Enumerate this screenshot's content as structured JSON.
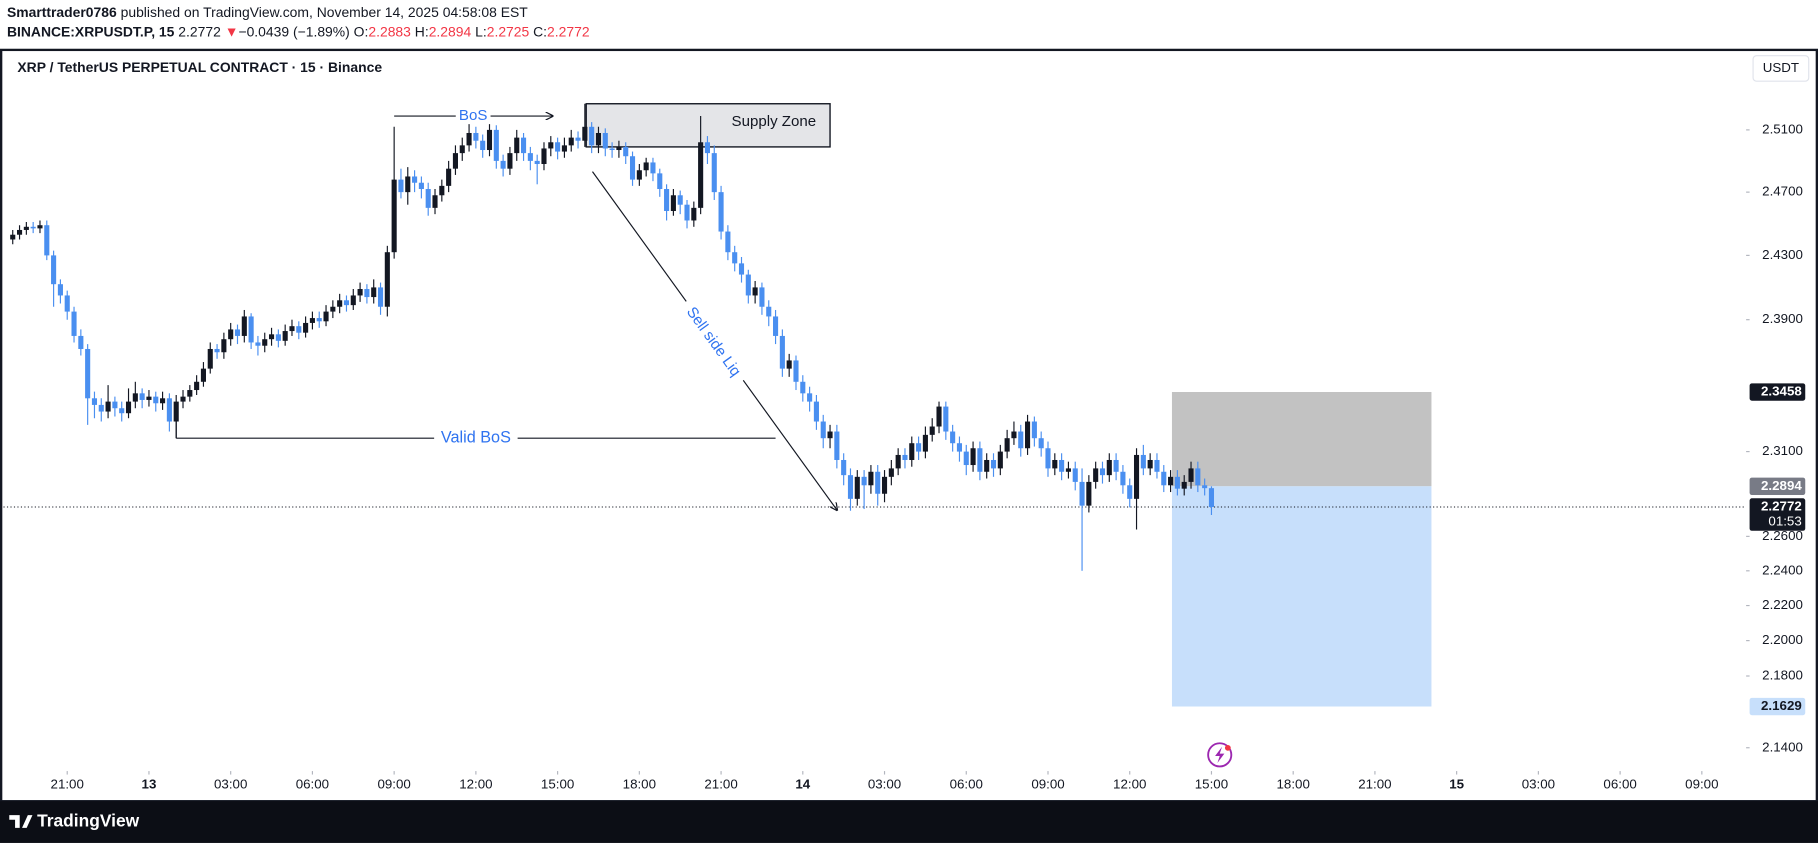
{
  "header": {
    "author": "Smarttrader0786",
    "published": "published on TradingView.com, November 14, 2025 04:58:08 EST",
    "symbol": "BINANCE:XRPUSDT.P, 15",
    "direction": "▼",
    "change": "−0.0439 (−1.89%)",
    "o_label": "O:",
    "h_label": "H:",
    "l_label": "L:",
    "c_label": "C:"
  },
  "footer": {
    "brand": "TradingView"
  },
  "chart_data": {
    "type": "candlestick",
    "title": "XRP / TetherUS PERPETUAL CONTRACT · 15 · Binance",
    "currency": "USDT",
    "up_color": "#131722",
    "down_color": "#4a8ff0",
    "log_scale": true,
    "grid": false,
    "ylim": [
      2.1113,
      2.5616
    ],
    "yticks": [
      {
        "value": 2.51,
        "label": "2.5100"
      },
      {
        "value": 2.47,
        "label": "2.4700"
      },
      {
        "value": 2.43,
        "label": "2.4300"
      },
      {
        "value": 2.39,
        "label": "2.3900"
      },
      {
        "value": 2.31,
        "label": "2.3100"
      },
      {
        "value": 2.26,
        "label": "2.2600"
      },
      {
        "value": 2.24,
        "label": "2.2400"
      },
      {
        "value": 2.22,
        "label": "2.2200"
      },
      {
        "value": 2.2,
        "label": "2.2000"
      },
      {
        "value": 2.18,
        "label": "2.1800"
      },
      {
        "value": 2.14,
        "label": "2.1400"
      }
    ],
    "xlim": [
      -1.87,
      254.5
    ],
    "xticks": [
      {
        "value": 8,
        "label": "21:00"
      },
      {
        "value": 20,
        "label": "13"
      },
      {
        "value": 32,
        "label": "03:00"
      },
      {
        "value": 44,
        "label": "06:00"
      },
      {
        "value": 56,
        "label": "09:00"
      },
      {
        "value": 68,
        "label": "12:00"
      },
      {
        "value": 80,
        "label": "15:00"
      },
      {
        "value": 92,
        "label": "18:00"
      },
      {
        "value": 104,
        "label": "21:00"
      },
      {
        "value": 116,
        "label": "14"
      },
      {
        "value": 128,
        "label": "03:00"
      },
      {
        "value": 140,
        "label": "06:00"
      },
      {
        "value": 152,
        "label": "09:00"
      },
      {
        "value": 164,
        "label": "12:00"
      },
      {
        "value": 176,
        "label": "15:00"
      },
      {
        "value": 188,
        "label": "18:00"
      },
      {
        "value": 200,
        "label": "21:00"
      },
      {
        "value": 212,
        "label": "15"
      },
      {
        "value": 224,
        "label": "03:00"
      },
      {
        "value": 236,
        "label": "06:00"
      },
      {
        "value": 248,
        "label": "09:00"
      }
    ],
    "open": [
      2.44,
      2.443,
      2.446,
      2.448,
      2.447,
      2.449,
      2.43,
      2.412,
      2.405,
      2.395,
      2.38,
      2.372,
      2.342,
      2.338,
      2.334,
      2.34,
      2.336,
      2.333,
      2.34,
      2.345,
      2.341,
      2.343,
      2.339,
      2.342,
      2.328,
      2.34,
      2.343,
      2.347,
      2.352,
      2.36,
      2.372,
      2.37,
      2.378,
      2.384,
      2.38,
      2.392,
      2.376,
      2.374,
      2.378,
      2.381,
      2.377,
      2.383,
      2.386,
      2.382,
      2.388,
      2.391,
      2.389,
      2.395,
      2.398,
      2.402,
      2.399,
      2.405,
      2.409,
      2.404,
      2.41,
      2.398,
      2.432,
      2.478,
      2.47,
      2.48,
      2.476,
      2.472,
      2.46,
      2.468,
      2.474,
      2.485,
      2.495,
      2.5,
      2.508,
      2.503,
      2.497,
      2.51,
      2.49,
      2.485,
      2.495,
      2.505,
      2.495,
      2.49,
      2.488,
      2.498,
      2.502,
      2.496,
      2.5,
      2.505,
      2.503,
      2.512,
      2.5,
      2.508,
      2.498,
      2.497,
      2.499,
      2.493,
      2.478,
      2.484,
      2.489,
      2.482,
      2.472,
      2.458,
      2.468,
      2.462,
      2.452,
      2.46,
      2.502,
      2.495,
      2.47,
      2.445,
      2.432,
      2.425,
      2.418,
      2.405,
      2.41,
      2.398,
      2.392,
      2.38,
      2.36,
      2.365,
      2.352,
      2.345,
      2.34,
      2.328,
      2.318,
      2.322,
      2.305,
      2.296,
      2.282,
      2.295,
      2.29,
      2.298,
      2.285,
      2.295,
      2.3,
      2.308,
      2.305,
      2.315,
      2.31,
      2.32,
      2.325,
      2.337,
      2.322,
      2.315,
      2.31,
      2.302,
      2.312,
      2.298,
      2.305,
      2.3,
      2.31,
      2.318,
      2.322,
      2.312,
      2.328,
      2.318,
      2.312,
      2.3,
      2.305,
      2.298,
      2.3,
      2.292,
      2.278,
      2.292,
      2.3,
      2.296,
      2.305,
      2.298,
      2.29,
      2.282,
      2.308,
      2.3,
      2.305,
      2.298,
      2.29,
      2.295,
      2.288,
      2.292,
      2.3,
      2.29,
      2.2883
    ],
    "high": [
      2.446,
      2.449,
      2.451,
      2.451,
      2.452,
      2.452,
      2.433,
      2.415,
      2.408,
      2.398,
      2.384,
      2.375,
      2.346,
      2.342,
      2.35,
      2.343,
      2.34,
      2.348,
      2.352,
      2.348,
      2.347,
      2.346,
      2.346,
      2.345,
      2.344,
      2.347,
      2.35,
      2.356,
      2.364,
      2.376,
      2.375,
      2.382,
      2.388,
      2.387,
      2.396,
      2.394,
      2.38,
      2.382,
      2.385,
      2.384,
      2.387,
      2.39,
      2.389,
      2.392,
      2.395,
      2.395,
      2.399,
      2.402,
      2.406,
      2.405,
      2.409,
      2.413,
      2.412,
      2.415,
      2.413,
      2.436,
      2.512,
      2.485,
      2.486,
      2.484,
      2.48,
      2.476,
      2.472,
      2.478,
      2.49,
      2.5,
      2.505,
      2.514,
      2.512,
      2.507,
      2.515,
      2.513,
      2.494,
      2.499,
      2.51,
      2.508,
      2.499,
      2.494,
      2.502,
      2.506,
      2.505,
      2.505,
      2.51,
      2.509,
      2.527,
      2.515,
      2.512,
      2.511,
      2.502,
      2.503,
      2.502,
      2.496,
      2.488,
      2.492,
      2.492,
      2.485,
      2.475,
      2.472,
      2.471,
      2.465,
      2.464,
      2.519,
      2.506,
      2.5,
      2.474,
      2.449,
      2.436,
      2.429,
      2.421,
      2.414,
      2.413,
      2.402,
      2.396,
      2.384,
      2.369,
      2.368,
      2.356,
      2.349,
      2.344,
      2.332,
      2.326,
      2.326,
      2.309,
      2.3,
      2.299,
      2.299,
      2.302,
      2.302,
      2.299,
      2.305,
      2.312,
      2.312,
      2.319,
      2.319,
      2.325,
      2.33,
      2.34,
      2.34,
      2.326,
      2.319,
      2.314,
      2.316,
      2.316,
      2.309,
      2.309,
      2.314,
      2.323,
      2.328,
      2.326,
      2.332,
      2.331,
      2.322,
      2.316,
      2.309,
      2.309,
      2.304,
      2.304,
      2.3,
      2.296,
      2.304,
      2.304,
      2.309,
      2.309,
      2.302,
      2.294,
      2.312,
      2.314,
      2.309,
      2.309,
      2.302,
      2.299,
      2.299,
      2.296,
      2.304,
      2.304,
      2.294,
      2.2894
    ],
    "low": [
      2.437,
      2.44,
      2.443,
      2.444,
      2.444,
      2.427,
      2.398,
      2.4,
      2.39,
      2.376,
      2.368,
      2.326,
      2.33,
      2.328,
      2.33,
      2.331,
      2.328,
      2.33,
      2.336,
      2.336,
      2.337,
      2.334,
      2.335,
      2.322,
      2.318,
      2.336,
      2.34,
      2.344,
      2.349,
      2.357,
      2.366,
      2.366,
      2.374,
      2.375,
      2.376,
      2.372,
      2.368,
      2.37,
      2.374,
      2.373,
      2.374,
      2.38,
      2.378,
      2.379,
      2.384,
      2.385,
      2.386,
      2.391,
      2.394,
      2.395,
      2.396,
      2.401,
      2.4,
      2.4,
      2.393,
      2.392,
      2.428,
      2.466,
      2.462,
      2.47,
      2.466,
      2.455,
      2.456,
      2.464,
      2.47,
      2.481,
      2.49,
      2.496,
      2.498,
      2.492,
      2.493,
      2.485,
      2.48,
      2.481,
      2.49,
      2.49,
      2.484,
      2.475,
      2.484,
      2.493,
      2.491,
      2.492,
      2.496,
      2.498,
      2.499,
      2.495,
      2.495,
      2.493,
      2.492,
      2.492,
      2.488,
      2.474,
      2.474,
      2.48,
      2.477,
      2.467,
      2.452,
      2.455,
      2.456,
      2.447,
      2.448,
      2.456,
      2.488,
      2.465,
      2.44,
      2.427,
      2.42,
      2.413,
      2.4,
      2.4,
      2.393,
      2.386,
      2.375,
      2.355,
      2.355,
      2.347,
      2.34,
      2.334,
      2.323,
      2.312,
      2.312,
      2.3,
      2.29,
      2.275,
      2.278,
      2.276,
      2.285,
      2.278,
      2.28,
      2.29,
      2.296,
      2.3,
      2.301,
      2.305,
      2.306,
      2.316,
      2.321,
      2.317,
      2.31,
      2.304,
      2.296,
      2.298,
      2.293,
      2.294,
      2.295,
      2.296,
      2.306,
      2.314,
      2.307,
      2.308,
      2.313,
      2.307,
      2.295,
      2.296,
      2.293,
      2.294,
      2.287,
      2.24,
      2.274,
      2.288,
      2.291,
      2.292,
      2.293,
      2.285,
      2.277,
      2.264,
      2.296,
      2.296,
      2.294,
      2.286,
      2.286,
      2.284,
      2.284,
      2.288,
      2.286,
      2.284,
      2.2725
    ],
    "close": [
      2.443,
      2.446,
      2.448,
      2.447,
      2.449,
      2.43,
      2.412,
      2.405,
      2.395,
      2.38,
      2.372,
      2.342,
      2.338,
      2.334,
      2.34,
      2.336,
      2.333,
      2.34,
      2.345,
      2.341,
      2.343,
      2.339,
      2.342,
      2.328,
      2.34,
      2.343,
      2.347,
      2.352,
      2.36,
      2.372,
      2.37,
      2.378,
      2.384,
      2.38,
      2.392,
      2.376,
      2.374,
      2.378,
      2.381,
      2.377,
      2.383,
      2.386,
      2.382,
      2.388,
      2.391,
      2.389,
      2.395,
      2.398,
      2.402,
      2.399,
      2.405,
      2.409,
      2.404,
      2.41,
      2.398,
      2.432,
      2.478,
      2.47,
      2.48,
      2.476,
      2.472,
      2.46,
      2.468,
      2.474,
      2.485,
      2.495,
      2.5,
      2.508,
      2.503,
      2.497,
      2.51,
      2.49,
      2.485,
      2.495,
      2.505,
      2.495,
      2.49,
      2.488,
      2.498,
      2.502,
      2.496,
      2.5,
      2.505,
      2.503,
      2.512,
      2.5,
      2.508,
      2.498,
      2.497,
      2.499,
      2.493,
      2.478,
      2.484,
      2.489,
      2.482,
      2.472,
      2.458,
      2.468,
      2.462,
      2.452,
      2.46,
      2.502,
      2.495,
      2.47,
      2.445,
      2.432,
      2.425,
      2.418,
      2.405,
      2.41,
      2.398,
      2.392,
      2.38,
      2.36,
      2.365,
      2.352,
      2.345,
      2.34,
      2.328,
      2.318,
      2.322,
      2.305,
      2.296,
      2.282,
      2.295,
      2.29,
      2.298,
      2.285,
      2.295,
      2.3,
      2.308,
      2.305,
      2.315,
      2.31,
      2.32,
      2.325,
      2.337,
      2.322,
      2.315,
      2.31,
      2.302,
      2.312,
      2.298,
      2.305,
      2.3,
      2.31,
      2.318,
      2.322,
      2.312,
      2.328,
      2.318,
      2.312,
      2.3,
      2.305,
      2.298,
      2.3,
      2.292,
      2.278,
      2.292,
      2.3,
      2.296,
      2.305,
      2.298,
      2.29,
      2.282,
      2.308,
      2.3,
      2.305,
      2.298,
      2.29,
      2.295,
      2.288,
      2.292,
      2.3,
      2.29,
      2.2883,
      2.2772
    ],
    "countdown": "01:53",
    "supply_zone": {
      "label": "Supply Zone",
      "top": 2.527,
      "bottom": 2.499
    },
    "bos": {
      "label": "BoS",
      "level": 2.519
    },
    "valid_bos": {
      "label": "Valid BoS",
      "level": 2.318
    },
    "sell_side": {
      "label": "Sell side Liq"
    },
    "position": {
      "stop": 2.3458,
      "entry": 2.2894,
      "target": 2.1629
    }
  }
}
